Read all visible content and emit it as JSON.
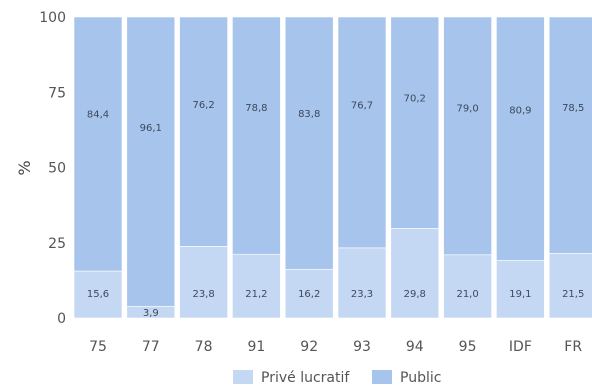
{
  "chart_data": {
    "type": "bar",
    "stacked": true,
    "categories": [
      "75",
      "77",
      "78",
      "91",
      "92",
      "93",
      "94",
      "95",
      "IDF",
      "FR"
    ],
    "series": [
      {
        "name": "Privé lucratif",
        "color": "#c5d8f3",
        "values": [
          15.6,
          3.9,
          23.8,
          21.2,
          16.2,
          23.3,
          29.8,
          21.0,
          19.1,
          21.5
        ],
        "labels": [
          "15,6",
          "3,9",
          "23,8",
          "21,2",
          "16,2",
          "23,3",
          "29,8",
          "21,0",
          "19,1",
          "21,5"
        ]
      },
      {
        "name": "Public",
        "color": "#a7c4ec",
        "values": [
          84.4,
          96.1,
          76.2,
          78.8,
          83.8,
          76.7,
          70.2,
          79.0,
          80.9,
          78.5
        ],
        "labels": [
          "84,4",
          "96,1",
          "76,2",
          "78,8",
          "83,8",
          "76,7",
          "70,2",
          "79,0",
          "80,9",
          "78,5"
        ]
      }
    ],
    "ylabel": "%",
    "ylim": [
      0,
      100
    ],
    "yticks": [
      0,
      25,
      50,
      75,
      100
    ],
    "legend_position": "bottom"
  }
}
